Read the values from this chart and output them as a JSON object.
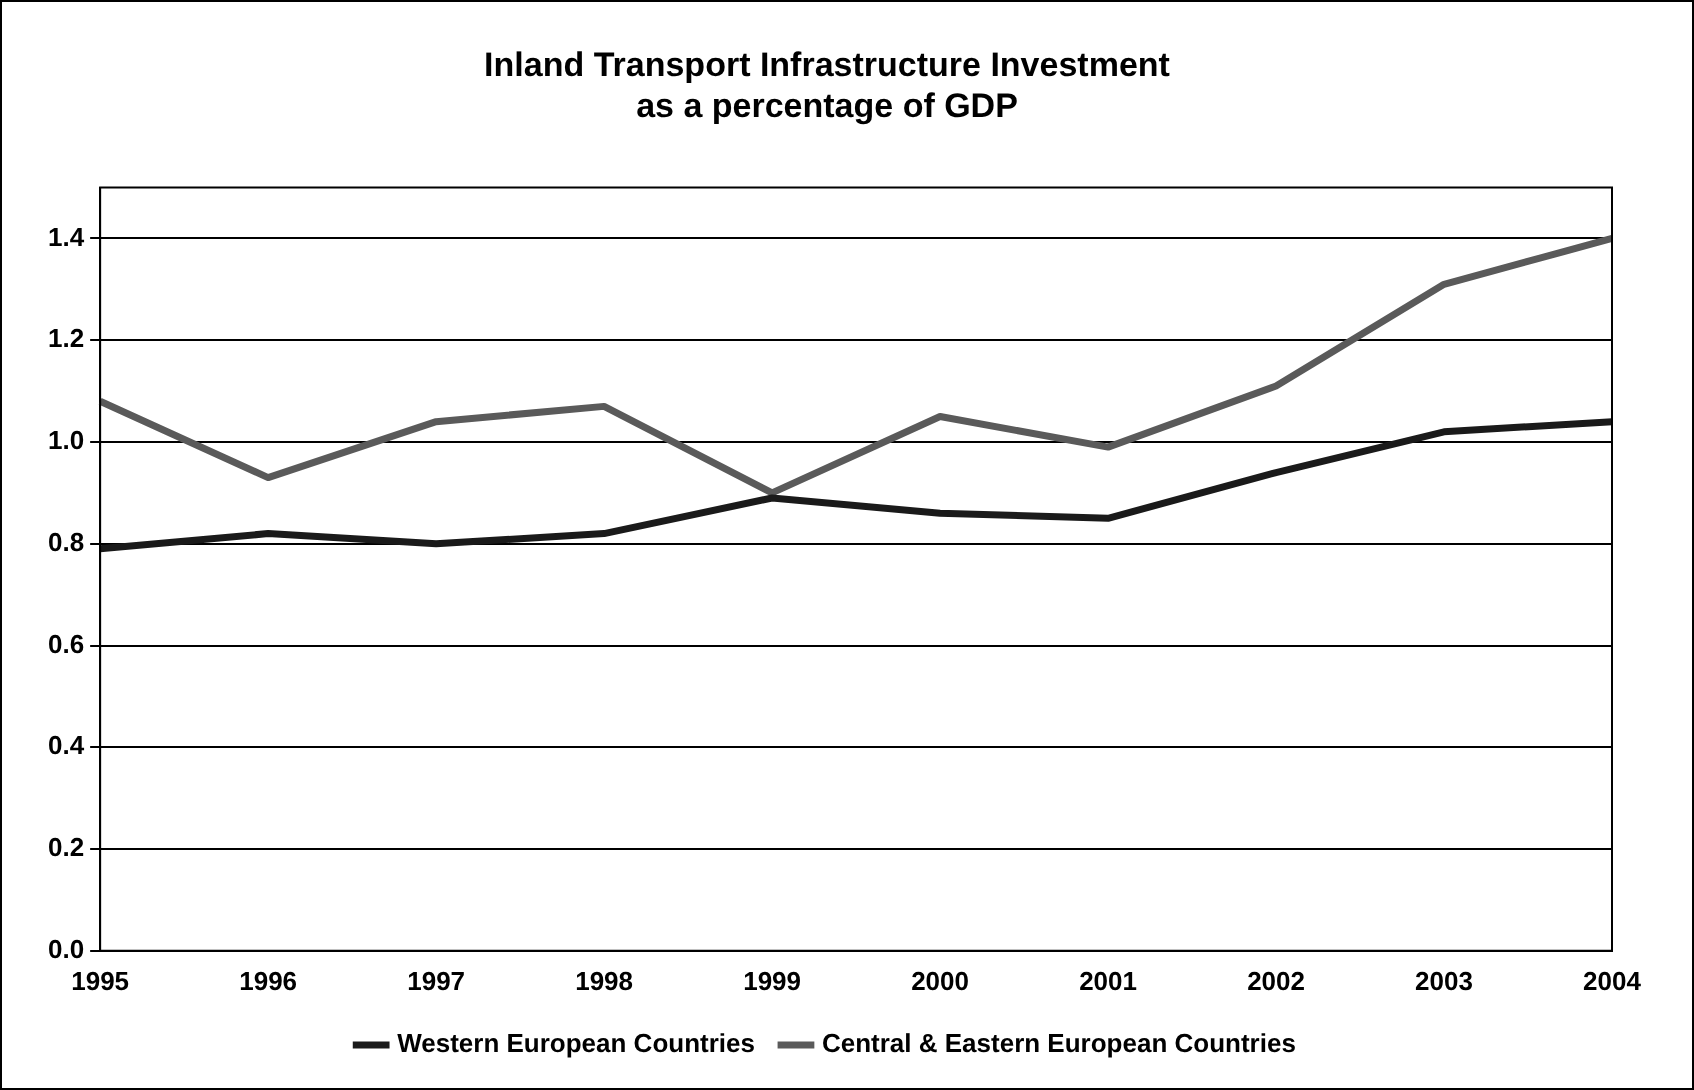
{
  "chart_data": {
    "type": "line",
    "title": "Inland Transport Infrastructure Investment\nas a percentage of GDP",
    "categories": [
      "1995",
      "1996",
      "1997",
      "1998",
      "1999",
      "2000",
      "2001",
      "2002",
      "2003",
      "2004"
    ],
    "series": [
      {
        "name": "Western European Countries",
        "color": "#1a1a1a",
        "values": [
          0.79,
          0.82,
          0.8,
          0.82,
          0.89,
          0.86,
          0.85,
          0.94,
          1.02,
          1.04
        ]
      },
      {
        "name": "Central & Eastern European Countries",
        "color": "#5a5a5a",
        "values": [
          1.08,
          0.93,
          1.04,
          1.07,
          0.9,
          1.05,
          0.99,
          1.11,
          1.31,
          1.4
        ]
      }
    ],
    "ylim": [
      0,
      1.5
    ],
    "yticks": [
      {
        "value": 0,
        "label": "0.0"
      },
      {
        "value": 0.2,
        "label": "0.2"
      },
      {
        "value": 0.4,
        "label": "0.4"
      },
      {
        "value": 0.6,
        "label": "0.6"
      },
      {
        "value": 0.8,
        "label": "0.8"
      },
      {
        "value": 1,
        "label": "1.0"
      },
      {
        "value": 1.2,
        "label": "1.2"
      },
      {
        "value": 1.4,
        "label": "1.4"
      }
    ],
    "grid": "y",
    "legend": "bottom",
    "marker": "none",
    "line_style": "solid"
  }
}
